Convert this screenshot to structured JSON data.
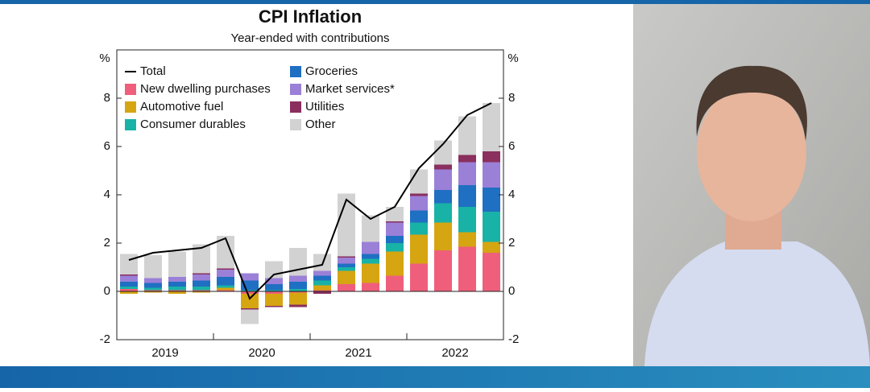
{
  "chart_data": {
    "type": "bar",
    "title": "CPI Inflation",
    "subtitle": "Year-ended with contributions",
    "y_unit": "%",
    "groups": [
      {
        "label": "2019",
        "size": 4
      },
      {
        "label": "2020",
        "size": 4
      },
      {
        "label": "2021",
        "size": 4
      },
      {
        "label": "2022",
        "size": 4
      }
    ],
    "ylim": [
      -2,
      10
    ],
    "yticks": [
      -2,
      0,
      2,
      4,
      6,
      8
    ],
    "series": [
      {
        "name": "Total",
        "type": "line",
        "color": "#000000",
        "values": [
          1.3,
          1.6,
          1.7,
          1.8,
          2.2,
          -0.3,
          0.7,
          0.9,
          1.1,
          3.8,
          3.0,
          3.5,
          5.1,
          6.1,
          7.3,
          7.8
        ]
      },
      {
        "name": "New dwelling purchases",
        "type": "bar",
        "color": "#ef5f7b",
        "values": [
          0.1,
          0.05,
          0.05,
          0.05,
          0.05,
          -0.1,
          -0.1,
          -0.05,
          0.05,
          0.3,
          0.35,
          0.65,
          1.15,
          1.7,
          1.85,
          1.6
        ]
      },
      {
        "name": "Automotive fuel",
        "type": "bar",
        "color": "#d6a512",
        "values": [
          -0.1,
          -0.05,
          -0.1,
          -0.05,
          0.1,
          -0.6,
          -0.5,
          -0.5,
          0.2,
          0.55,
          0.8,
          1.0,
          1.2,
          1.15,
          0.6,
          0.45
        ]
      },
      {
        "name": "Consumer durables",
        "type": "bar",
        "color": "#19b2a6",
        "values": [
          0.1,
          0.1,
          0.15,
          0.15,
          0.1,
          0.05,
          0.05,
          0.1,
          0.2,
          0.15,
          0.2,
          0.35,
          0.5,
          0.8,
          1.05,
          1.25
        ]
      },
      {
        "name": "Groceries",
        "type": "bar",
        "color": "#1f6fc2",
        "values": [
          0.2,
          0.2,
          0.2,
          0.25,
          0.35,
          0.4,
          0.25,
          0.3,
          0.2,
          0.15,
          0.2,
          0.3,
          0.5,
          0.55,
          0.9,
          1.0
        ]
      },
      {
        "name": "Market services*",
        "type": "bar",
        "color": "#9b80d8",
        "values": [
          0.25,
          0.2,
          0.2,
          0.25,
          0.3,
          0.3,
          0.25,
          0.25,
          0.2,
          0.25,
          0.5,
          0.55,
          0.6,
          0.85,
          0.95,
          1.05
        ]
      },
      {
        "name": "Utilities",
        "type": "bar",
        "color": "#8a2f5e",
        "values": [
          0.05,
          0.0,
          0.0,
          0.05,
          0.05,
          -0.05,
          -0.05,
          -0.1,
          -0.1,
          0.05,
          0.0,
          0.05,
          0.1,
          0.2,
          0.3,
          0.45
        ]
      },
      {
        "name": "Other",
        "type": "bar",
        "color": "#d2d2d2",
        "values": [
          0.85,
          0.95,
          1.05,
          1.2,
          1.35,
          -0.6,
          0.7,
          1.15,
          0.7,
          2.6,
          1.1,
          0.6,
          1.0,
          1.0,
          1.6,
          2.0
        ]
      }
    ]
  }
}
